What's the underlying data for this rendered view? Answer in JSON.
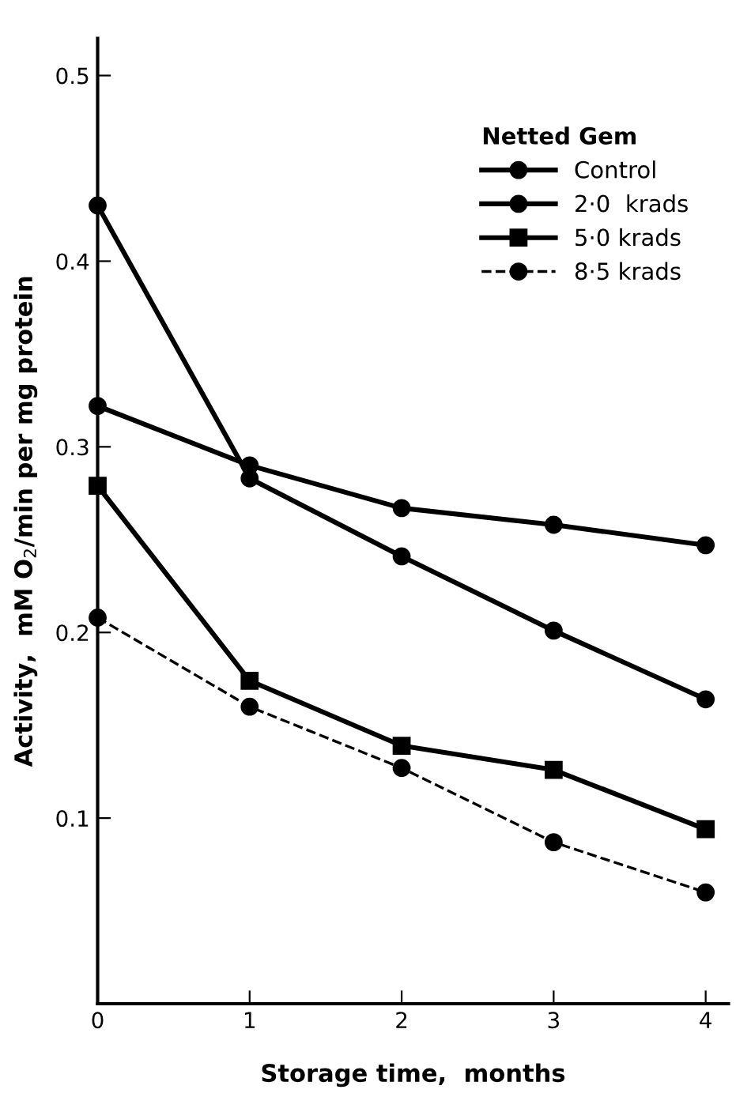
{
  "chart_data": {
    "type": "line",
    "xlabel": "Storage time,  months",
    "ylabel": "Activity,  mM O$_{2}$/min per mg protein",
    "legend_title": "Netted Gem",
    "legend": "top right",
    "x": [
      0,
      1,
      2,
      3,
      4
    ],
    "xlim": [
      0,
      4.15
    ],
    "xticks": [
      0,
      1,
      2,
      3,
      4
    ],
    "ylim": [
      0,
      0.52
    ],
    "yticks": [
      0.1,
      0.2,
      0.3,
      0.4,
      0.5
    ],
    "grid": false,
    "series": [
      {
        "name": "Control",
        "color": "#000000",
        "marker": "circle",
        "line_style": "solid",
        "values": [
          0.322,
          0.29,
          0.267,
          0.258,
          0.247
        ]
      },
      {
        "name": "2·0  krads",
        "color": "#000000",
        "marker": "circle",
        "line_style": "solid",
        "values": [
          0.43,
          0.283,
          0.241,
          0.201,
          0.164
        ]
      },
      {
        "name": "5·0 krads",
        "color": "#000000",
        "marker": "square",
        "line_style": "solid",
        "values": [
          0.279,
          0.174,
          0.139,
          0.126,
          0.094
        ]
      },
      {
        "name": "8·5 krads",
        "color": "#000000",
        "marker": "circle",
        "line_style": "dashed",
        "values": [
          0.208,
          0.16,
          0.127,
          0.087,
          0.06
        ]
      }
    ]
  }
}
